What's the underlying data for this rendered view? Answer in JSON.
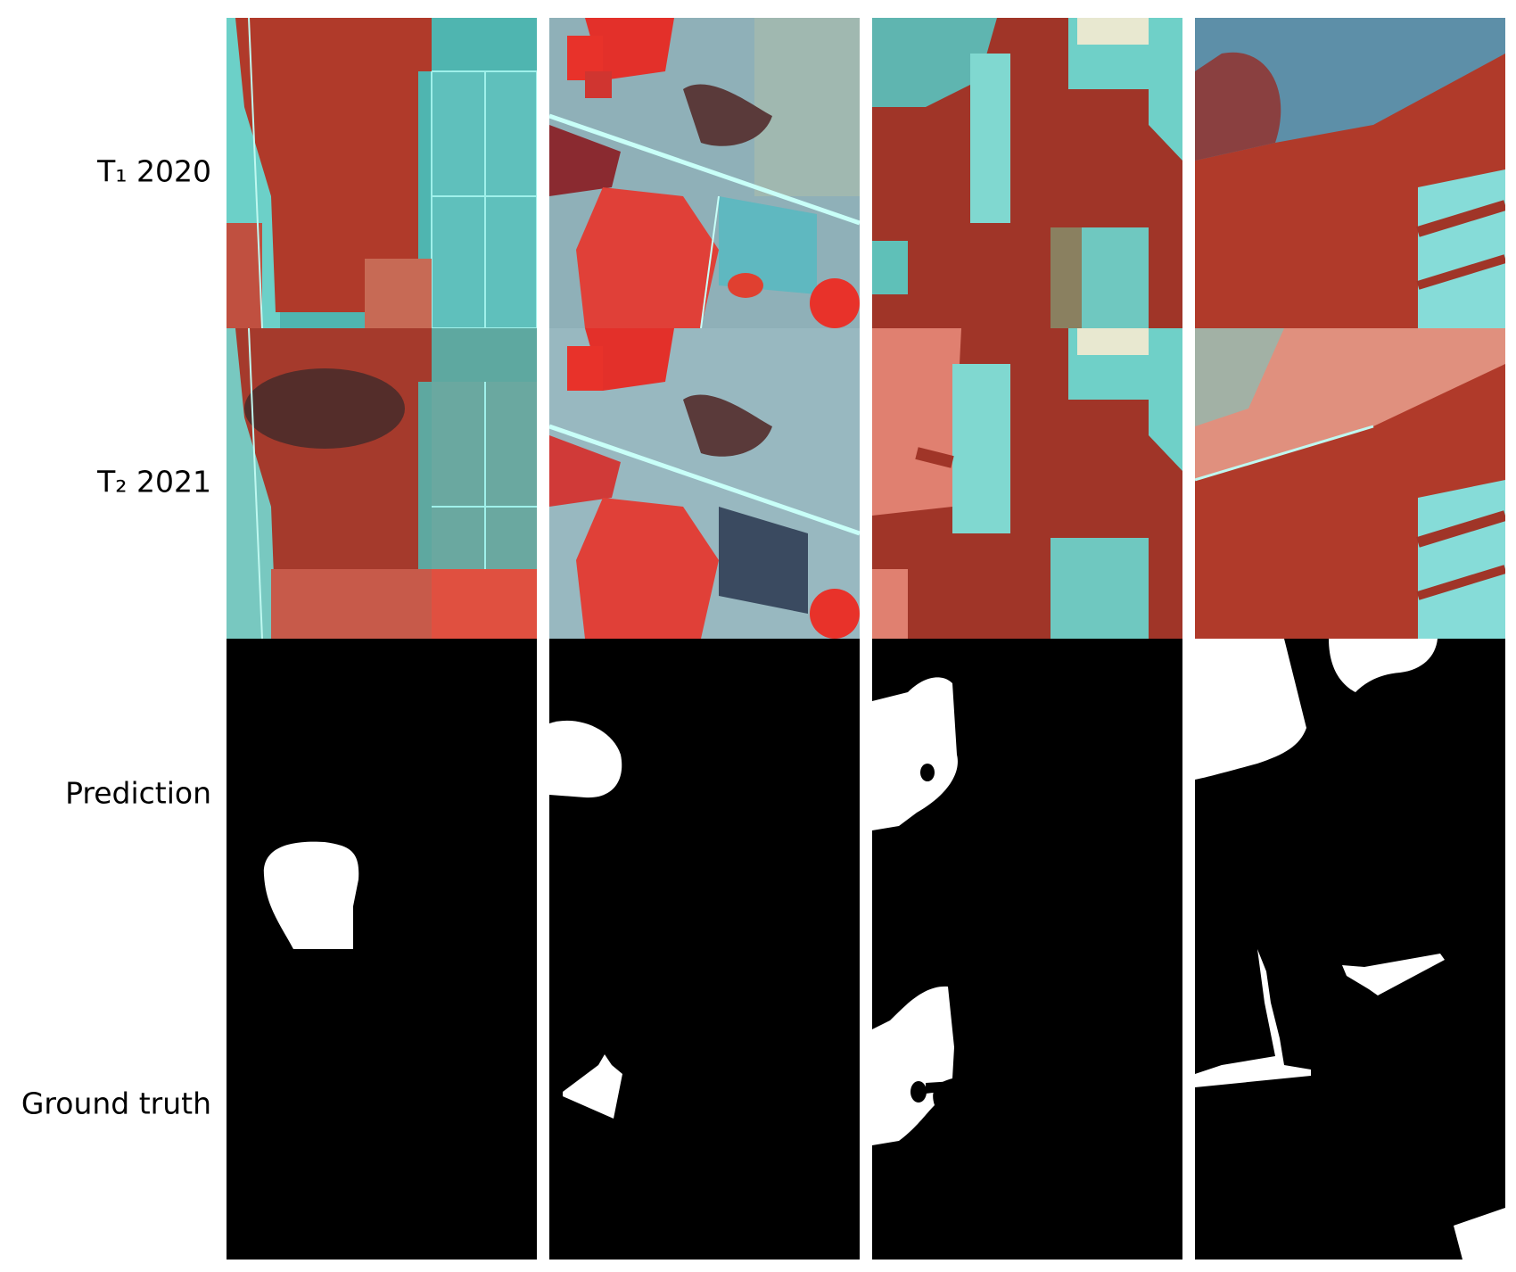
{
  "rows": [
    {
      "label": "T₁ 2020"
    },
    {
      "label": "T₂ 2021"
    },
    {
      "label": "Prediction"
    },
    {
      "label": "Ground truth"
    }
  ],
  "palette": {
    "forest_red": "#b03a2a",
    "bright_red": "#e8322a",
    "cleared_cyan": "#5fc8c8",
    "pale_cyan": "#8fe0dc",
    "grey_blue": "#7fa3ad",
    "salmon": "#e07f6c",
    "mask_background": "#000000",
    "mask_foreground": "#ffffff"
  }
}
